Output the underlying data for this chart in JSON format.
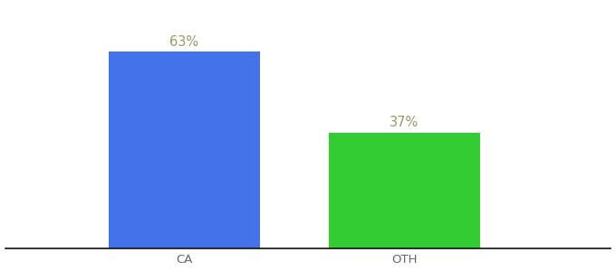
{
  "categories": [
    "CA",
    "OTH"
  ],
  "values": [
    63,
    37
  ],
  "bar_colors": [
    "#4472E8",
    "#33CC33"
  ],
  "label_texts": [
    "63%",
    "37%"
  ],
  "label_color": "#999966",
  "ylim": [
    0,
    78
  ],
  "background_color": "#ffffff",
  "bar_width": 0.55,
  "tick_fontsize": 9.5,
  "label_fontsize": 10.5,
  "spine_color": "#111111",
  "xlim": [
    -0.35,
    1.85
  ]
}
